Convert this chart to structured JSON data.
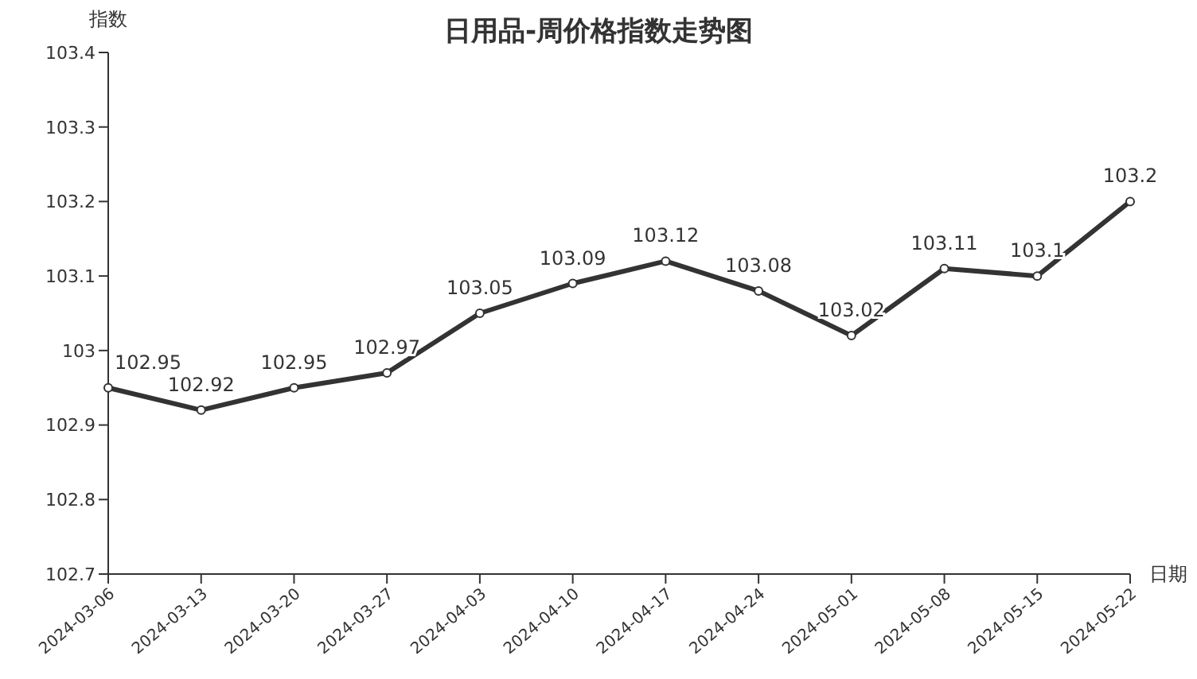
{
  "chart_data": {
    "type": "line",
    "title": "日用品-周价格指数走势图",
    "xlabel": "日期",
    "ylabel": "指数",
    "categories": [
      "2024-03-06",
      "2024-03-13",
      "2024-03-20",
      "2024-03-27",
      "2024-04-03",
      "2024-04-10",
      "2024-04-17",
      "2024-04-24",
      "2024-05-01",
      "2024-05-08",
      "2024-05-15",
      "2024-05-22"
    ],
    "series": [
      {
        "color": "#333333",
        "values": [
          102.95,
          102.92,
          102.95,
          102.97,
          103.05,
          103.09,
          103.12,
          103.08,
          103.02,
          103.11,
          103.1,
          103.2
        ]
      }
    ],
    "ylim": [
      102.7,
      103.4
    ],
    "yticks": [
      102.7,
      102.8,
      102.9,
      103,
      103.1,
      103.2,
      103.3,
      103.4
    ],
    "grid": false,
    "legend": false,
    "marker": "circle",
    "line_style": "solid",
    "data_labels": true
  }
}
